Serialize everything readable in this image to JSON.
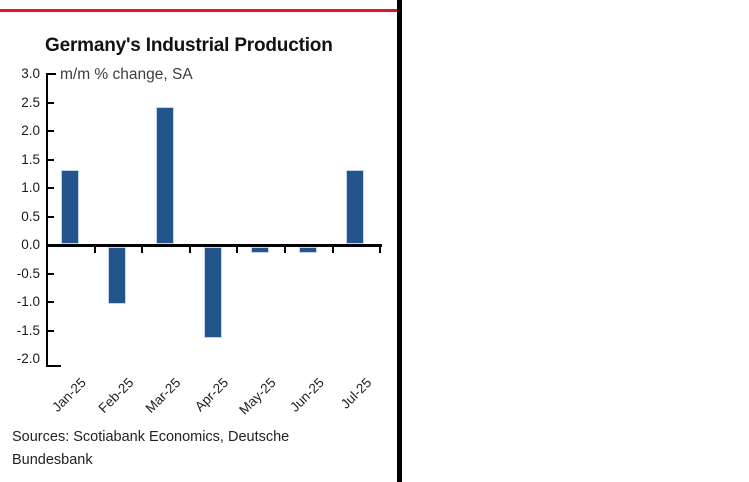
{
  "panel": {
    "accent_color": "#E8112D",
    "border_color": "#000000",
    "background": "#FFFFFF"
  },
  "chart_data": {
    "type": "bar",
    "title": "Germany's Industrial Production",
    "subtitle": "m/m % change, SA",
    "categories": [
      "Jan-25",
      "Feb-25",
      "Mar-25",
      "Apr-25",
      "May-25",
      "Jun-25",
      "Jul-25"
    ],
    "values": [
      1.3,
      -1.0,
      2.4,
      -1.6,
      -0.1,
      -0.1,
      1.3
    ],
    "ylim": [
      -2.0,
      3.0
    ],
    "ytick_step": 0.5,
    "ytick_labels": [
      "3.0",
      "2.5",
      "2.0",
      "1.5",
      "1.0",
      "0.5",
      "0.0",
      "-0.5",
      "-1.0",
      "-1.5",
      "-2.0"
    ],
    "xlabel": "",
    "ylabel": "",
    "grid": false,
    "legend": false,
    "bar_color": "#24548C",
    "bar_edge_color": "#C3D4E8",
    "axis_color": "#000000",
    "tick_direction": "in",
    "xlabel_rotation_deg": 45
  },
  "footer": {
    "sources": "Sources: Scotiabank Economics, Deutsche Bundesbank"
  }
}
